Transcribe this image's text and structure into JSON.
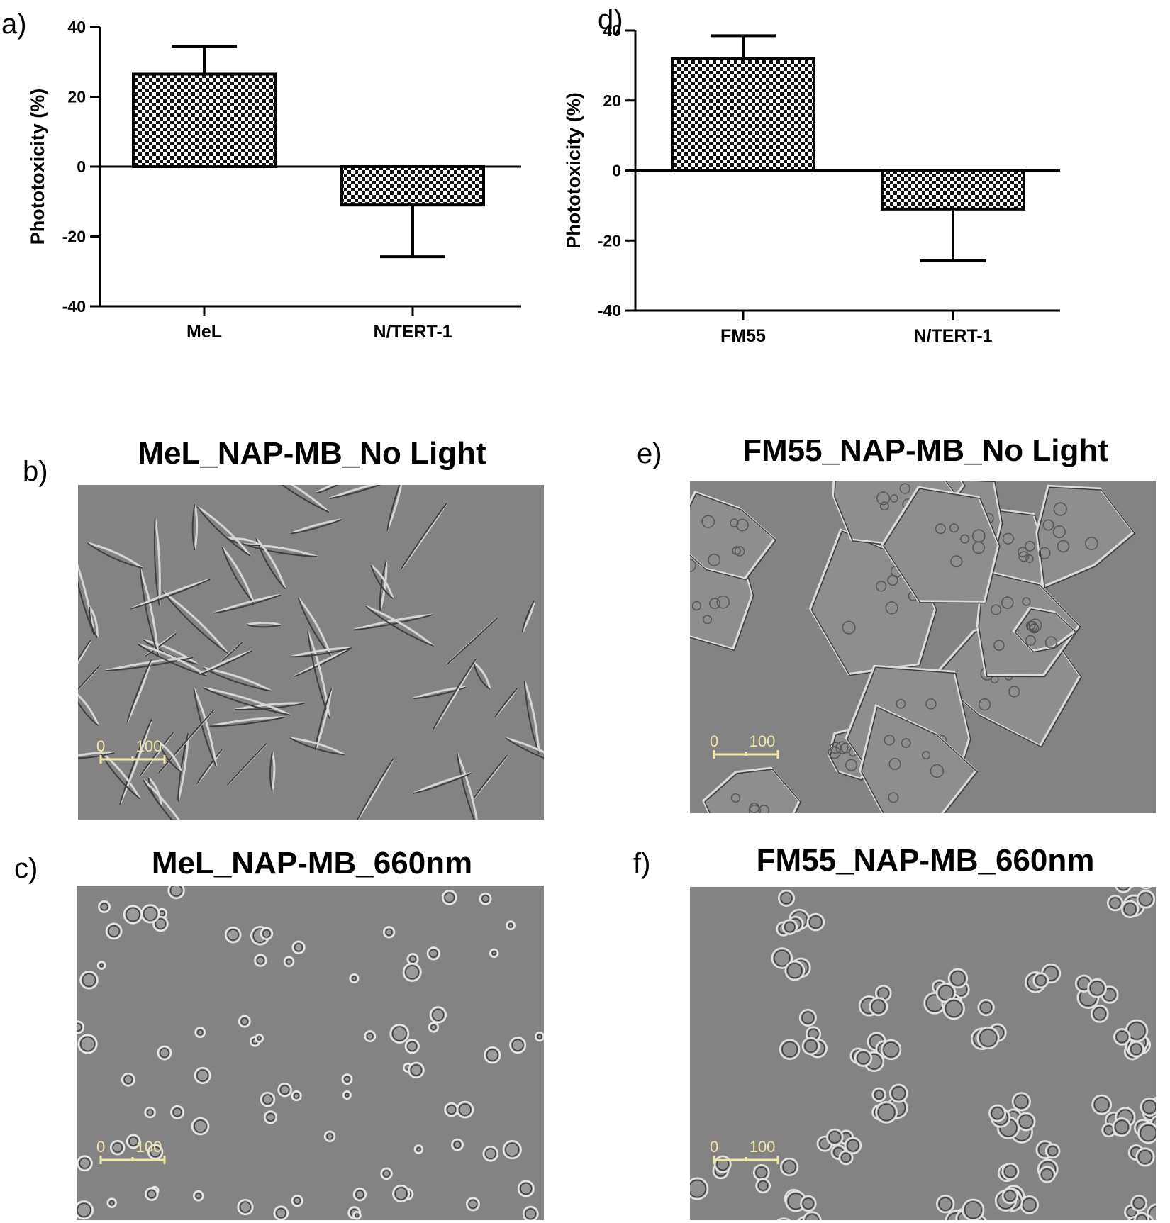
{
  "chart_data": [
    {
      "type": "bar",
      "panel": "a)",
      "ylabel": "Phototoxicity (%)",
      "xlabel": "",
      "title": "",
      "ylim": [
        -40,
        40
      ],
      "yticks": [
        "40",
        "20",
        "0",
        "-20",
        "-40"
      ],
      "categories": [
        "MeL",
        "N/TERT-1"
      ],
      "values": [
        26.5,
        -11.0
      ],
      "errors": [
        8.0,
        14.8
      ],
      "fill": "checkerboard"
    },
    {
      "type": "bar",
      "panel": "d)",
      "ylabel": "Phototoxicity (%)",
      "xlabel": "",
      "title": "",
      "ylim": [
        -40,
        40
      ],
      "yticks": [
        "40",
        "20",
        "0",
        "-20",
        "-40"
      ],
      "categories": [
        "FM55",
        "N/TERT-1"
      ],
      "values": [
        32.0,
        -11.0
      ],
      "errors": [
        6.5,
        14.8
      ],
      "fill": "checkerboard"
    }
  ],
  "micrographs": [
    {
      "panel": "b)",
      "title": "MeL_NAP-MB_No Light",
      "morphology": "elongated",
      "scale_start": "0",
      "scale_end": "100"
    },
    {
      "panel": "c)",
      "title": "MeL_NAP-MB_660nm",
      "morphology": "rounded",
      "scale_start": "0",
      "scale_end": "100"
    },
    {
      "panel": "e)",
      "title": "FM55_NAP-MB_No Light",
      "morphology": "clusters",
      "scale_start": "0",
      "scale_end": "100"
    },
    {
      "panel": "f)",
      "title": "FM55_NAP-MB_660nm",
      "morphology": "rounded-clusters",
      "scale_start": "0",
      "scale_end": "100"
    }
  ],
  "colors": {
    "background": "#ffffff",
    "micrograph_bg": "#838383",
    "scale_bar": "#f3e7a6",
    "ink": "#000000"
  }
}
